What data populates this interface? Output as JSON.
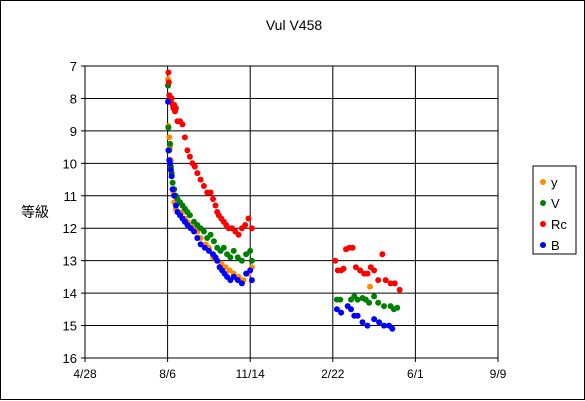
{
  "chart_data": {
    "type": "scatter",
    "title": "Vul V458",
    "ylabel": "等級",
    "xlabel": "",
    "x_tick_labels": [
      "4/28",
      "8/6",
      "11/14",
      "2/22",
      "6/1",
      "9/9"
    ],
    "y_ticks": [
      7,
      8,
      9,
      10,
      11,
      12,
      13,
      14,
      15,
      16
    ],
    "ylim": [
      7,
      16
    ],
    "y_inverted": true,
    "x_unit": "days",
    "x_range_days": [
      0,
      500
    ],
    "grid": true,
    "legend_position": "right",
    "series": [
      {
        "name": "y",
        "color": "#ff8c00",
        "points": [
          [
            100.5,
            7.4
          ],
          [
            100.8,
            7.6
          ],
          [
            101,
            8.85
          ],
          [
            102,
            9.2
          ],
          [
            103,
            9.5
          ],
          [
            104,
            9.9
          ],
          [
            105,
            10.3
          ],
          [
            106,
            10.6
          ],
          [
            107,
            10.9
          ],
          [
            108,
            11.2
          ],
          [
            110,
            11.4
          ],
          [
            112,
            11.5
          ],
          [
            115,
            11.6
          ],
          [
            118,
            11.5
          ],
          [
            121,
            11.7
          ],
          [
            124,
            11.8
          ],
          [
            128,
            11.9
          ],
          [
            132,
            12.0
          ],
          [
            136,
            12.1
          ],
          [
            140,
            12.3
          ],
          [
            146,
            12.5
          ],
          [
            150,
            12.6
          ],
          [
            155,
            12.9
          ],
          [
            160,
            13.0
          ],
          [
            165,
            13.1
          ],
          [
            170,
            13.2
          ],
          [
            175,
            13.3
          ],
          [
            180,
            13.4
          ],
          [
            186,
            13.5
          ],
          [
            192,
            13.6
          ],
          [
            198,
            13.4
          ],
          [
            202,
            13.2
          ],
          [
            345,
            13.8
          ]
        ]
      },
      {
        "name": "V",
        "color": "#008000",
        "points": [
          [
            100.5,
            7.6
          ],
          [
            101,
            8.9
          ],
          [
            102,
            9.6
          ],
          [
            103,
            9.4
          ],
          [
            104,
            10.1
          ],
          [
            105,
            10.3
          ],
          [
            106,
            10.6
          ],
          [
            108,
            10.8
          ],
          [
            110,
            11.0
          ],
          [
            112,
            11.1
          ],
          [
            115,
            11.2
          ],
          [
            118,
            11.3
          ],
          [
            121,
            11.4
          ],
          [
            124,
            11.5
          ],
          [
            127,
            11.6
          ],
          [
            132,
            11.8
          ],
          [
            136,
            11.9
          ],
          [
            140,
            12.0
          ],
          [
            144,
            12.1
          ],
          [
            148,
            12.3
          ],
          [
            152,
            12.2
          ],
          [
            156,
            12.4
          ],
          [
            160,
            12.6
          ],
          [
            164,
            12.7
          ],
          [
            168,
            12.6
          ],
          [
            172,
            12.8
          ],
          [
            176,
            12.9
          ],
          [
            180,
            12.7
          ],
          [
            185,
            12.9
          ],
          [
            190,
            13.0
          ],
          [
            195,
            12.8
          ],
          [
            200,
            12.7
          ],
          [
            202,
            13.0
          ],
          [
            305,
            14.2
          ],
          [
            309,
            14.2
          ],
          [
            322,
            14.2
          ],
          [
            326,
            14.1
          ],
          [
            330,
            14.2
          ],
          [
            336,
            14.15
          ],
          [
            340,
            14.2
          ],
          [
            344,
            14.3
          ],
          [
            350,
            14.1
          ],
          [
            355,
            14.3
          ],
          [
            362,
            14.4
          ],
          [
            370,
            14.4
          ],
          [
            374,
            14.5
          ],
          [
            378,
            14.45
          ]
        ]
      },
      {
        "name": "Rc",
        "color": "#ff0000",
        "points": [
          [
            101,
            7.2
          ],
          [
            101.5,
            7.5
          ],
          [
            102,
            7.9
          ],
          [
            103,
            8.0
          ],
          [
            104,
            8.1
          ],
          [
            105,
            8.0
          ],
          [
            106,
            8.2
          ],
          [
            107,
            8.3
          ],
          [
            108,
            8.2
          ],
          [
            109,
            8.4
          ],
          [
            110,
            8.3
          ],
          [
            112,
            8.7
          ],
          [
            115,
            8.7
          ],
          [
            118,
            8.8
          ],
          [
            121,
            9.2
          ],
          [
            124,
            9.6
          ],
          [
            127,
            9.8
          ],
          [
            130,
            10.0
          ],
          [
            133,
            10.1
          ],
          [
            136,
            10.3
          ],
          [
            140,
            10.5
          ],
          [
            144,
            10.7
          ],
          [
            148,
            10.9
          ],
          [
            152,
            10.9
          ],
          [
            155,
            11.1
          ],
          [
            158,
            11.3
          ],
          [
            160,
            11.5
          ],
          [
            162,
            11.6
          ],
          [
            165,
            11.7
          ],
          [
            168,
            11.8
          ],
          [
            171,
            11.9
          ],
          [
            174,
            12.0
          ],
          [
            178,
            12.0
          ],
          [
            182,
            12.1
          ],
          [
            186,
            12.2
          ],
          [
            190,
            12.0
          ],
          [
            194,
            11.9
          ],
          [
            198,
            11.7
          ],
          [
            202,
            12.0
          ],
          [
            303,
            13.0
          ],
          [
            306,
            13.3
          ],
          [
            310,
            13.3
          ],
          [
            313,
            13.25
          ],
          [
            316,
            12.65
          ],
          [
            320,
            12.6
          ],
          [
            324,
            12.6
          ],
          [
            328,
            13.2
          ],
          [
            333,
            13.3
          ],
          [
            338,
            13.4
          ],
          [
            342,
            13.4
          ],
          [
            346,
            13.2
          ],
          [
            350,
            13.3
          ],
          [
            355,
            13.6
          ],
          [
            360,
            12.8
          ],
          [
            364,
            13.6
          ],
          [
            370,
            13.7
          ],
          [
            375,
            13.7
          ],
          [
            381,
            13.9
          ]
        ]
      },
      {
        "name": "B",
        "color": "#0000ff",
        "points": [
          [
            100.5,
            8.1
          ],
          [
            101,
            9.6
          ],
          [
            102,
            9.9
          ],
          [
            103,
            10.0
          ],
          [
            104,
            10.2
          ],
          [
            105,
            10.4
          ],
          [
            106,
            10.8
          ],
          [
            108,
            11.0
          ],
          [
            110,
            11.3
          ],
          [
            112,
            11.5
          ],
          [
            115,
            11.6
          ],
          [
            118,
            11.7
          ],
          [
            121,
            11.8
          ],
          [
            124,
            11.9
          ],
          [
            128,
            12.0
          ],
          [
            132,
            12.1
          ],
          [
            136,
            12.3
          ],
          [
            140,
            12.5
          ],
          [
            145,
            12.6
          ],
          [
            150,
            12.7
          ],
          [
            155,
            12.8
          ],
          [
            158,
            12.9
          ],
          [
            160,
            13.0
          ],
          [
            163,
            13.2
          ],
          [
            166,
            13.3
          ],
          [
            169,
            13.4
          ],
          [
            172,
            13.5
          ],
          [
            176,
            13.6
          ],
          [
            180,
            13.5
          ],
          [
            185,
            13.6
          ],
          [
            190,
            13.7
          ],
          [
            195,
            13.4
          ],
          [
            200,
            13.3
          ],
          [
            202,
            13.6
          ],
          [
            305,
            14.5
          ],
          [
            310,
            14.6
          ],
          [
            318,
            14.4
          ],
          [
            322,
            14.5
          ],
          [
            326,
            14.7
          ],
          [
            330,
            14.7
          ],
          [
            336,
            14.9
          ],
          [
            342,
            15.0
          ],
          [
            350,
            14.8
          ],
          [
            356,
            14.9
          ],
          [
            362,
            15.0
          ],
          [
            368,
            15.0
          ],
          [
            372,
            15.1
          ]
        ]
      }
    ]
  }
}
